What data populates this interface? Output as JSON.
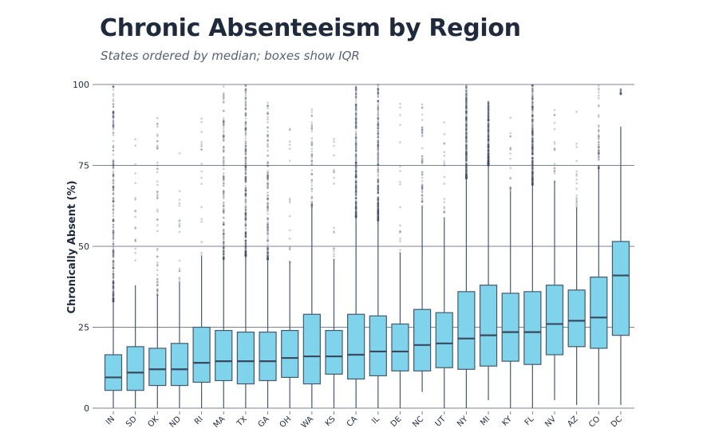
{
  "header": {
    "title": "Chronic Absenteeism by Region",
    "subtitle": "States ordered by median; boxes show IQR"
  },
  "colors": {
    "box_fill": "#7fd3ea",
    "box_stroke": "#45596e",
    "median": "#3a4a5e",
    "whisker": "#45596e",
    "outlier": "#3f4d62",
    "grid": "#7c8294",
    "text": "#1f2a3c"
  },
  "chart_data": {
    "type": "box",
    "title": "Chronic Absenteeism by Region",
    "subtitle": "States ordered by median; boxes show IQR",
    "xlabel": "",
    "ylabel": "Chronically Absent (%)",
    "ylim": [
      0,
      100
    ],
    "yticks": [
      0,
      25,
      50,
      75,
      100
    ],
    "grid": true,
    "categories": [
      "IN",
      "SD",
      "OK",
      "ND",
      "RI",
      "MA",
      "TX",
      "GA",
      "OH",
      "WA",
      "KS",
      "CA",
      "IL",
      "DE",
      "NC",
      "UT",
      "NY",
      "MI",
      "KY",
      "FL",
      "NV",
      "AZ",
      "CO",
      "DC"
    ],
    "boxes": [
      {
        "label": "IN",
        "min": 0,
        "q1": 5.5,
        "median": 9.5,
        "q3": 16.5,
        "max": 33,
        "outliers": {
          "from": 33,
          "to": 100,
          "density": "very dense"
        }
      },
      {
        "label": "SD",
        "min": 0,
        "q1": 5.5,
        "median": 11,
        "q3": 19,
        "max": 38,
        "outliers": {
          "from": 38,
          "to": 84,
          "density": "sparse"
        }
      },
      {
        "label": "OK",
        "min": 0,
        "q1": 7,
        "median": 12,
        "q3": 18.5,
        "max": 35,
        "outliers": {
          "from": 35,
          "to": 92,
          "density": "medium"
        }
      },
      {
        "label": "ND",
        "min": 0,
        "q1": 7,
        "median": 12,
        "q3": 20,
        "max": 39,
        "outliers": {
          "from": 39,
          "to": 82,
          "density": "sparse"
        }
      },
      {
        "label": "RI",
        "min": 0,
        "q1": 8,
        "median": 14,
        "q3": 25,
        "max": 47,
        "outliers": {
          "from": 47,
          "to": 96,
          "density": "sparse"
        }
      },
      {
        "label": "MA",
        "min": 0,
        "q1": 8.5,
        "median": 14.5,
        "q3": 24,
        "max": 46,
        "outliers": {
          "from": 46,
          "to": 100,
          "density": "dense"
        }
      },
      {
        "label": "TX",
        "min": 0,
        "q1": 7.5,
        "median": 14.5,
        "q3": 23.5,
        "max": 47,
        "outliers": {
          "from": 47,
          "to": 100,
          "density": "very dense"
        }
      },
      {
        "label": "GA",
        "min": 0,
        "q1": 8.5,
        "median": 14.5,
        "q3": 23.5,
        "max": 46,
        "outliers": {
          "from": 46,
          "to": 96,
          "density": "dense"
        }
      },
      {
        "label": "OH",
        "min": 0,
        "q1": 9.5,
        "median": 15.5,
        "q3": 24,
        "max": 45,
        "outliers": {
          "from": 45,
          "to": 89,
          "density": "sparse"
        }
      },
      {
        "label": "WA",
        "min": 0,
        "q1": 7.5,
        "median": 16,
        "q3": 29,
        "max": 62,
        "outliers": {
          "from": 62,
          "to": 95,
          "density": "medium"
        }
      },
      {
        "label": "KS",
        "min": 0,
        "q1": 10.5,
        "median": 16,
        "q3": 24,
        "max": 46,
        "outliers": {
          "from": 46,
          "to": 92,
          "density": "sparse"
        }
      },
      {
        "label": "CA",
        "min": 0,
        "q1": 9,
        "median": 16.5,
        "q3": 29,
        "max": 59,
        "outliers": {
          "from": 59,
          "to": 100,
          "density": "very dense"
        }
      },
      {
        "label": "IL",
        "min": 0,
        "q1": 10,
        "median": 17.5,
        "q3": 28.5,
        "max": 58,
        "outliers": {
          "from": 58,
          "to": 100,
          "density": "very dense"
        }
      },
      {
        "label": "DE",
        "min": 0,
        "q1": 11.5,
        "median": 17.5,
        "q3": 26,
        "max": 48,
        "outliers": {
          "from": 48,
          "to": 95,
          "density": "sparse"
        }
      },
      {
        "label": "NC",
        "min": 5,
        "q1": 11.5,
        "median": 19.5,
        "q3": 30.5,
        "max": 62,
        "outliers": {
          "from": 62,
          "to": 95,
          "density": "medium"
        }
      },
      {
        "label": "UT",
        "min": 0,
        "q1": 12.5,
        "median": 20,
        "q3": 29.5,
        "max": 59,
        "outliers": {
          "from": 59,
          "to": 93,
          "density": "sparse"
        }
      },
      {
        "label": "NY",
        "min": 0,
        "q1": 12,
        "median": 21.5,
        "q3": 36,
        "max": 71,
        "outliers": {
          "from": 71,
          "to": 100,
          "density": "very dense"
        }
      },
      {
        "label": "MI",
        "min": 2.5,
        "q1": 13,
        "median": 22.5,
        "q3": 38,
        "max": 75,
        "outliers": {
          "from": 75,
          "to": 95,
          "density": "very dense"
        }
      },
      {
        "label": "KY",
        "min": 0,
        "q1": 14.5,
        "median": 23.5,
        "q3": 35.5,
        "max": 67,
        "outliers": {
          "from": 67,
          "to": 96,
          "density": "sparse"
        }
      },
      {
        "label": "FL",
        "min": 0,
        "q1": 13.5,
        "median": 23.5,
        "q3": 36,
        "max": 69,
        "outliers": {
          "from": 69,
          "to": 100,
          "density": "very dense"
        }
      },
      {
        "label": "NV",
        "min": 2.5,
        "q1": 16.5,
        "median": 26,
        "q3": 38,
        "max": 70,
        "outliers": {
          "from": 70,
          "to": 95,
          "density": "sparse"
        }
      },
      {
        "label": "AZ",
        "min": 1,
        "q1": 19,
        "median": 27,
        "q3": 36.5,
        "max": 62,
        "outliers": {
          "from": 62,
          "to": 92,
          "density": "sparse"
        }
      },
      {
        "label": "CO",
        "min": 1,
        "q1": 18.5,
        "median": 28,
        "q3": 40.5,
        "max": 74,
        "outliers": {
          "from": 74,
          "to": 100,
          "density": "medium"
        }
      },
      {
        "label": "DC",
        "min": 1,
        "q1": 22.5,
        "median": 41,
        "q3": 51.5,
        "max": 87,
        "outliers": {
          "from": 97,
          "to": 99,
          "density": "sparse"
        }
      }
    ]
  }
}
